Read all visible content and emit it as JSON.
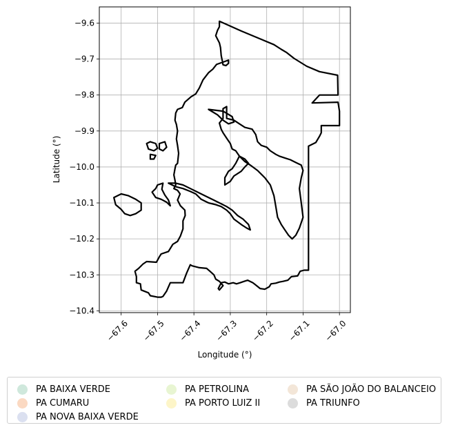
{
  "map": {
    "type": "polygon-map",
    "xlabel": "Longitude (°)",
    "ylabel": "Latitude (°)",
    "xlim": [
      -67.66,
      -66.97
    ],
    "ylim": [
      -10.405,
      -9.555
    ],
    "xticks": [
      -67.6,
      -67.5,
      -67.4,
      -67.3,
      -67.2,
      -67.1,
      -67.0
    ],
    "xtick_labels": [
      "−67.6",
      "−67.5",
      "−67.4",
      "−67.3",
      "−67.2",
      "−67.1",
      "−67.0"
    ],
    "yticks": [
      -9.6,
      -9.7,
      -9.8,
      -9.9,
      -10.0,
      -10.1,
      -10.2,
      -10.3,
      -10.4
    ],
    "ytick_labels": [
      "−9.6",
      "−9.7",
      "−9.8",
      "−9.9",
      "−10.0",
      "−10.1",
      "−10.2",
      "−10.3",
      "−10.4"
    ],
    "grid": true,
    "boundary_color": "#000000",
    "outlines": [
      [
        [
          -67.33,
          -9.595
        ],
        [
          -67.27,
          -9.622
        ],
        [
          -67.22,
          -9.643
        ],
        [
          -67.18,
          -9.66
        ],
        [
          -67.16,
          -9.673
        ],
        [
          -67.145,
          -9.682
        ],
        [
          -67.125,
          -9.698
        ],
        [
          -67.09,
          -9.72
        ],
        [
          -67.055,
          -9.735
        ],
        [
          -67.005,
          -9.745
        ],
        [
          -67.004,
          -9.8
        ],
        [
          -67.055,
          -9.8
        ],
        [
          -67.075,
          -9.822
        ],
        [
          -67.004,
          -9.82
        ],
        [
          -67.0,
          -9.845
        ],
        [
          -67.0,
          -9.885
        ],
        [
          -67.05,
          -9.885
        ],
        [
          -67.05,
          -9.905
        ],
        [
          -67.055,
          -9.915
        ],
        [
          -67.065,
          -9.932
        ],
        [
          -67.085,
          -9.942
        ],
        [
          -67.085,
          -9.96
        ],
        [
          -67.085,
          -10.0
        ],
        [
          -67.085,
          -10.1
        ],
        [
          -67.085,
          -10.2
        ],
        [
          -67.085,
          -10.287
        ],
        [
          -67.097,
          -10.287
        ],
        [
          -67.108,
          -10.29
        ],
        [
          -67.115,
          -10.303
        ],
        [
          -67.132,
          -10.305
        ],
        [
          -67.142,
          -10.315
        ],
        [
          -67.155,
          -10.318
        ],
        [
          -67.165,
          -10.32
        ],
        [
          -67.175,
          -10.323
        ],
        [
          -67.188,
          -10.325
        ],
        [
          -67.193,
          -10.333
        ],
        [
          -67.205,
          -10.34
        ],
        [
          -67.218,
          -10.338
        ],
        [
          -67.228,
          -10.33
        ],
        [
          -67.238,
          -10.322
        ],
        [
          -67.252,
          -10.315
        ],
        [
          -67.262,
          -10.318
        ],
        [
          -67.273,
          -10.322
        ],
        [
          -67.283,
          -10.325
        ],
        [
          -67.292,
          -10.322
        ],
        [
          -67.305,
          -10.325
        ],
        [
          -67.315,
          -10.32
        ],
        [
          -67.325,
          -10.322
        ],
        [
          -67.333,
          -10.338
        ],
        [
          -67.33,
          -10.342
        ],
        [
          -67.32,
          -10.33
        ],
        [
          -67.33,
          -10.318
        ],
        [
          -67.34,
          -10.312
        ],
        [
          -67.345,
          -10.3
        ],
        [
          -67.356,
          -10.29
        ],
        [
          -67.365,
          -10.282
        ],
        [
          -67.385,
          -10.28
        ],
        [
          -67.405,
          -10.275
        ],
        [
          -67.41,
          -10.272
        ],
        [
          -67.42,
          -10.295
        ],
        [
          -67.43,
          -10.322
        ],
        [
          -67.465,
          -10.322
        ],
        [
          -67.475,
          -10.345
        ],
        [
          -67.485,
          -10.36
        ],
        [
          -67.49,
          -10.362
        ],
        [
          -67.5,
          -10.362
        ],
        [
          -67.52,
          -10.358
        ],
        [
          -67.525,
          -10.35
        ],
        [
          -67.545,
          -10.342
        ],
        [
          -67.547,
          -10.325
        ],
        [
          -67.558,
          -10.322
        ],
        [
          -67.558,
          -10.305
        ],
        [
          -67.562,
          -10.29
        ],
        [
          -67.552,
          -10.282
        ],
        [
          -67.54,
          -10.27
        ],
        [
          -67.53,
          -10.263
        ],
        [
          -67.503,
          -10.265
        ],
        [
          -67.495,
          -10.25
        ],
        [
          -67.49,
          -10.242
        ],
        [
          -67.47,
          -10.235
        ],
        [
          -67.458,
          -10.215
        ],
        [
          -67.445,
          -10.207
        ],
        [
          -67.437,
          -10.192
        ],
        [
          -67.43,
          -10.172
        ],
        [
          -67.43,
          -10.15
        ],
        [
          -67.424,
          -10.135
        ],
        [
          -67.425,
          -10.12
        ],
        [
          -67.437,
          -10.108
        ],
        [
          -67.445,
          -10.092
        ],
        [
          -67.438,
          -10.075
        ],
        [
          -67.445,
          -10.065
        ],
        [
          -67.455,
          -10.06
        ],
        [
          -67.45,
          -10.05
        ],
        [
          -67.452,
          -10.037
        ],
        [
          -67.455,
          -10.022
        ],
        [
          -67.452,
          -10.005
        ],
        [
          -67.45,
          -9.995
        ],
        [
          -67.445,
          -9.99
        ],
        [
          -67.442,
          -9.962
        ],
        [
          -67.445,
          -9.94
        ],
        [
          -67.448,
          -9.922
        ],
        [
          -67.445,
          -9.9
        ],
        [
          -67.448,
          -9.882
        ],
        [
          -67.452,
          -9.87
        ],
        [
          -67.45,
          -9.85
        ],
        [
          -67.445,
          -9.84
        ],
        [
          -67.432,
          -9.835
        ],
        [
          -67.425,
          -9.82
        ],
        [
          -67.408,
          -9.805
        ],
        [
          -67.395,
          -9.797
        ],
        [
          -67.385,
          -9.78
        ],
        [
          -67.375,
          -9.758
        ],
        [
          -67.36,
          -9.738
        ],
        [
          -67.348,
          -9.728
        ],
        [
          -67.338,
          -9.715
        ],
        [
          -67.305,
          -9.703
        ],
        [
          -67.305,
          -9.712
        ],
        [
          -67.312,
          -9.718
        ],
        [
          -67.32,
          -9.716
        ],
        [
          -67.322,
          -9.705
        ],
        [
          -67.325,
          -9.69
        ],
        [
          -67.327,
          -9.668
        ],
        [
          -67.33,
          -9.655
        ],
        [
          -67.335,
          -9.645
        ],
        [
          -67.34,
          -9.635
        ],
        [
          -67.335,
          -9.62
        ],
        [
          -67.33,
          -9.61
        ],
        [
          -67.33,
          -9.595
        ]
      ],
      [
        [
          -67.32,
          -9.838
        ],
        [
          -67.31,
          -9.832
        ],
        [
          -67.31,
          -9.865
        ],
        [
          -67.29,
          -9.87
        ],
        [
          -67.275,
          -9.88
        ],
        [
          -67.26,
          -9.89
        ],
        [
          -67.24,
          -9.895
        ],
        [
          -67.23,
          -9.91
        ],
        [
          -67.225,
          -9.93
        ],
        [
          -67.215,
          -9.94
        ],
        [
          -67.2,
          -9.945
        ],
        [
          -67.19,
          -9.955
        ],
        [
          -67.175,
          -9.965
        ],
        [
          -67.165,
          -9.97
        ],
        [
          -67.15,
          -9.975
        ],
        [
          -67.135,
          -9.98
        ],
        [
          -67.125,
          -9.985
        ],
        [
          -67.115,
          -9.99
        ],
        [
          -67.105,
          -9.995
        ],
        [
          -67.1,
          -10.01
        ],
        [
          -67.105,
          -10.03
        ],
        [
          -67.11,
          -10.06
        ],
        [
          -67.105,
          -10.1
        ],
        [
          -67.1,
          -10.14
        ],
        [
          -67.11,
          -10.17
        ],
        [
          -67.12,
          -10.19
        ],
        [
          -67.13,
          -10.2
        ],
        [
          -67.14,
          -10.19
        ],
        [
          -67.15,
          -10.175
        ],
        [
          -67.16,
          -10.16
        ],
        [
          -67.17,
          -10.14
        ],
        [
          -67.175,
          -10.11
        ],
        [
          -67.18,
          -10.08
        ],
        [
          -67.19,
          -10.05
        ],
        [
          -67.205,
          -10.03
        ],
        [
          -67.225,
          -10.01
        ],
        [
          -67.245,
          -9.995
        ],
        [
          -67.26,
          -9.985
        ],
        [
          -67.275,
          -9.97
        ],
        [
          -67.285,
          -9.955
        ],
        [
          -67.295,
          -9.95
        ],
        [
          -67.3,
          -9.935
        ],
        [
          -67.31,
          -9.92
        ],
        [
          -67.32,
          -9.905
        ],
        [
          -67.325,
          -9.895
        ],
        [
          -67.33,
          -9.878
        ],
        [
          -67.32,
          -9.865
        ],
        [
          -67.32,
          -9.838
        ]
      ],
      [
        [
          -67.315,
          -10.05
        ],
        [
          -67.3,
          -10.04
        ],
        [
          -67.29,
          -10.025
        ],
        [
          -67.27,
          -10.012
        ],
        [
          -67.26,
          -10.0
        ],
        [
          -67.25,
          -9.99
        ],
        [
          -67.26,
          -9.978
        ],
        [
          -67.275,
          -9.97
        ],
        [
          -67.285,
          -9.99
        ],
        [
          -67.295,
          -10.005
        ],
        [
          -67.305,
          -10.012
        ],
        [
          -67.315,
          -10.03
        ],
        [
          -67.315,
          -10.05
        ]
      ],
      [
        [
          -67.36,
          -9.84
        ],
        [
          -67.32,
          -9.845
        ],
        [
          -67.295,
          -9.86
        ],
        [
          -67.29,
          -9.875
        ],
        [
          -67.305,
          -9.88
        ],
        [
          -67.32,
          -9.87
        ],
        [
          -67.335,
          -9.855
        ],
        [
          -67.36,
          -9.84
        ]
      ],
      [
        [
          -67.47,
          -10.045
        ],
        [
          -67.45,
          -10.055
        ],
        [
          -67.43,
          -10.06
        ],
        [
          -67.41,
          -10.068
        ],
        [
          -67.395,
          -10.075
        ],
        [
          -67.38,
          -10.09
        ],
        [
          -67.36,
          -10.1
        ],
        [
          -67.34,
          -10.105
        ],
        [
          -67.325,
          -10.11
        ],
        [
          -67.31,
          -10.12
        ],
        [
          -67.3,
          -10.13
        ],
        [
          -67.29,
          -10.145
        ],
        [
          -67.27,
          -10.16
        ],
        [
          -67.255,
          -10.17
        ],
        [
          -67.245,
          -10.175
        ],
        [
          -67.25,
          -10.16
        ],
        [
          -67.265,
          -10.145
        ],
        [
          -67.28,
          -10.135
        ],
        [
          -67.295,
          -10.12
        ],
        [
          -67.31,
          -10.11
        ],
        [
          -67.33,
          -10.1
        ],
        [
          -67.35,
          -10.09
        ],
        [
          -67.37,
          -10.08
        ],
        [
          -67.39,
          -10.07
        ],
        [
          -67.41,
          -10.06
        ],
        [
          -67.43,
          -10.05
        ],
        [
          -67.45,
          -10.045
        ],
        [
          -67.47,
          -10.045
        ]
      ],
      [
        [
          -67.53,
          -9.935
        ],
        [
          -67.52,
          -9.93
        ],
        [
          -67.505,
          -9.935
        ],
        [
          -67.5,
          -9.948
        ],
        [
          -67.51,
          -9.955
        ],
        [
          -67.525,
          -9.95
        ],
        [
          -67.53,
          -9.935
        ]
      ],
      [
        [
          -67.495,
          -9.935
        ],
        [
          -67.48,
          -9.93
        ],
        [
          -67.475,
          -9.945
        ],
        [
          -67.485,
          -9.955
        ],
        [
          -67.495,
          -9.95
        ],
        [
          -67.495,
          -9.935
        ]
      ],
      [
        [
          -67.52,
          -9.965
        ],
        [
          -67.505,
          -9.968
        ],
        [
          -67.51,
          -9.978
        ],
        [
          -67.52,
          -9.978
        ],
        [
          -67.52,
          -9.965
        ]
      ],
      [
        [
          -67.485,
          -10.045
        ],
        [
          -67.5,
          -10.05
        ],
        [
          -67.505,
          -10.06
        ],
        [
          -67.515,
          -10.07
        ],
        [
          -67.505,
          -10.085
        ],
        [
          -67.49,
          -10.09
        ],
        [
          -67.475,
          -10.098
        ],
        [
          -67.465,
          -10.108
        ],
        [
          -67.47,
          -10.092
        ],
        [
          -67.48,
          -10.078
        ],
        [
          -67.488,
          -10.062
        ],
        [
          -67.485,
          -10.045
        ]
      ],
      [
        [
          -67.62,
          -10.085
        ],
        [
          -67.6,
          -10.075
        ],
        [
          -67.58,
          -10.08
        ],
        [
          -67.56,
          -10.09
        ],
        [
          -67.545,
          -10.1
        ],
        [
          -67.545,
          -10.12
        ],
        [
          -67.56,
          -10.13
        ],
        [
          -67.575,
          -10.135
        ],
        [
          -67.59,
          -10.13
        ],
        [
          -67.6,
          -10.118
        ],
        [
          -67.615,
          -10.105
        ],
        [
          -67.62,
          -10.085
        ]
      ]
    ]
  },
  "legend": {
    "entries": [
      {
        "label": "PA BAIXA VERDE",
        "color": "#cfe8dc"
      },
      {
        "label": "PA CUMARU",
        "color": "#fbd9c2"
      },
      {
        "label": "PA NOVA BAIXA VERDE",
        "color": "#dbe0f0"
      },
      {
        "label": "PA PETROLINA",
        "color": "#e8f5d2"
      },
      {
        "label": "PA PORTO LUIZ II",
        "color": "#fdf5c8"
      },
      {
        "label": "PA SÃO JOÃO DO BALANCEIO",
        "color": "#f3e6d8"
      },
      {
        "label": "PA TRIUNFO",
        "color": "#dcdcdc"
      }
    ]
  }
}
